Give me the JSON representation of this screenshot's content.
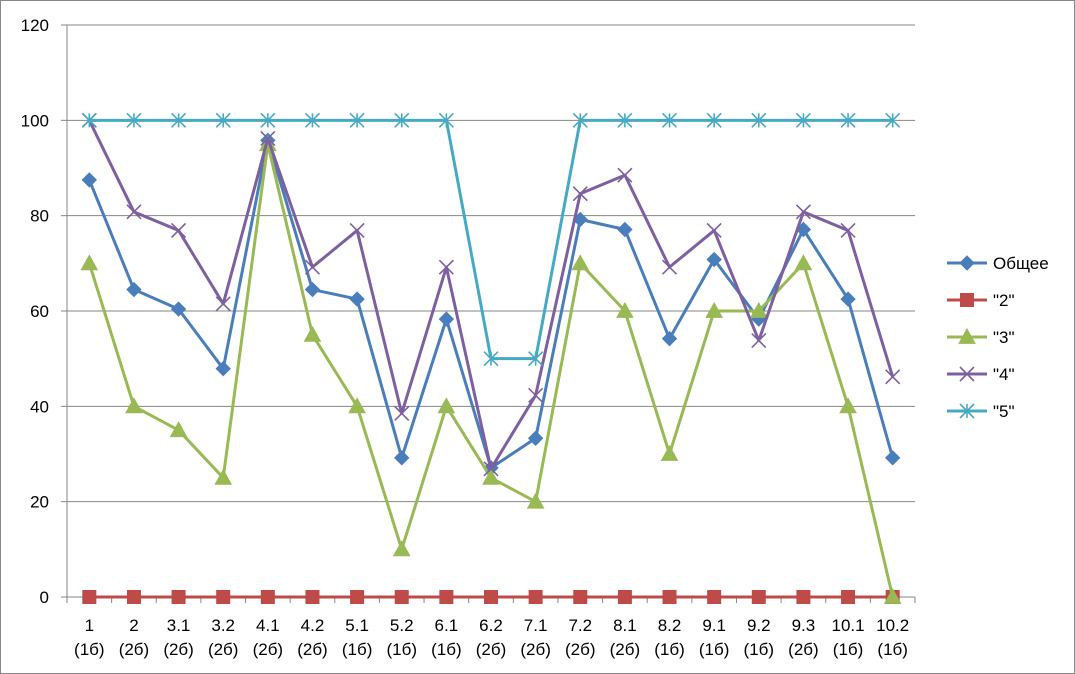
{
  "chart_data": {
    "type": "line",
    "categories": [
      "1 (1б)",
      "2 (2б)",
      "3.1 (2б)",
      "3.2 (2б)",
      "4.1 (2б)",
      "4.2 (2б)",
      "5.1 (1б)",
      "5.2 (1б)",
      "6.1 (1б)",
      "6.2 (2б)",
      "7.1 (2б)",
      "7.2 (2б)",
      "8.1 (2б)",
      "8.2 (1б)",
      "9.1 (1б)",
      "9.2 (1б)",
      "9.3 (2б)",
      "10.1 (1б)",
      "10.2 (1б)"
    ],
    "category_lines": [
      [
        "1",
        "(1б)"
      ],
      [
        "2",
        "(2б)"
      ],
      [
        "3.1",
        "(2б)"
      ],
      [
        "3.2",
        "(2б)"
      ],
      [
        "4.1",
        "(2б)"
      ],
      [
        "4.2",
        "(2б)"
      ],
      [
        "5.1",
        "(1б)"
      ],
      [
        "5.2",
        "(1б)"
      ],
      [
        "6.1",
        "(1б)"
      ],
      [
        "6.2",
        "(2б)"
      ],
      [
        "7.1",
        "(2б)"
      ],
      [
        "7.2",
        "(2б)"
      ],
      [
        "8.1",
        "(2б)"
      ],
      [
        "8.2",
        "(1б)"
      ],
      [
        "9.1",
        "(1б)"
      ],
      [
        "9.2",
        "(1б)"
      ],
      [
        "9.3",
        "(2б)"
      ],
      [
        "10.1",
        "(1б)"
      ],
      [
        "10.2",
        "(1б)"
      ]
    ],
    "ylim": [
      0,
      120
    ],
    "yticks": [
      "0",
      "20",
      "40",
      "60",
      "80",
      "100",
      "120"
    ],
    "grid": true,
    "legend_position": "right",
    "series": [
      {
        "name": "Общее",
        "color": "#4a7ebb",
        "marker": "diamond",
        "values": [
          87.5,
          64.5,
          60.4,
          47.9,
          95.8,
          64.5,
          62.5,
          29.2,
          58.3,
          27.1,
          33.3,
          79.2,
          77.1,
          54.2,
          70.8,
          58.3,
          77.1,
          62.5,
          29.2
        ]
      },
      {
        "name": "\"2\"",
        "color": "#be4b48",
        "marker": "square",
        "values": [
          0,
          0,
          0,
          0,
          0,
          0,
          0,
          0,
          0,
          0,
          0,
          0,
          0,
          0,
          0,
          0,
          0,
          0,
          0
        ]
      },
      {
        "name": "\"3\"",
        "color": "#98b954",
        "marker": "triangle",
        "values": [
          70,
          40,
          35,
          25,
          95,
          55,
          40,
          10,
          40,
          25,
          20,
          70,
          60,
          30,
          60,
          60,
          70,
          40,
          0
        ]
      },
      {
        "name": "\"4\"",
        "color": "#7d60a0",
        "marker": "x",
        "values": [
          100,
          80.8,
          76.9,
          61.5,
          96.2,
          69.2,
          76.9,
          38.5,
          69.2,
          26.9,
          42.3,
          84.6,
          88.5,
          69.2,
          76.9,
          53.8,
          80.8,
          76.9,
          46.2
        ]
      },
      {
        "name": "\"5\"",
        "color": "#46aac5",
        "marker": "star",
        "values": [
          100,
          100,
          100,
          100,
          100,
          100,
          100,
          100,
          100,
          50,
          50,
          100,
          100,
          100,
          100,
          100,
          100,
          100,
          100
        ]
      }
    ]
  }
}
